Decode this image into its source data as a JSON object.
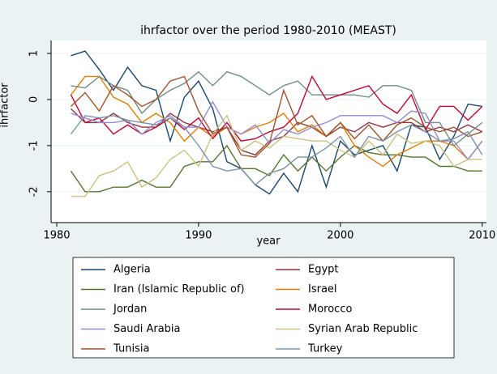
{
  "chart_data": {
    "type": "line",
    "title": "ihrfactor over the period 1980-2010 (MEAST)",
    "x_label": "year",
    "y_label": "ihrfactor",
    "x": [
      1981,
      1982,
      1983,
      1984,
      1985,
      1986,
      1987,
      1988,
      1989,
      1990,
      1991,
      1992,
      1993,
      1994,
      1995,
      1996,
      1997,
      1998,
      1999,
      2000,
      2001,
      2002,
      2003,
      2004,
      2005,
      2006,
      2007,
      2008,
      2009,
      2010
    ],
    "xlim": [
      1979.6,
      2010.3
    ],
    "xticks": [
      1980,
      1990,
      2000,
      2010
    ],
    "ylim": [
      -2.67,
      1.28
    ],
    "yticks": [
      -2,
      -1,
      0,
      1
    ],
    "grid": true,
    "legend_position": "bottom",
    "legend_columns": 2,
    "series": [
      {
        "name": "Algeria",
        "color": "#1a476f",
        "values": [
          0.95,
          1.05,
          0.65,
          0.2,
          0.7,
          0.3,
          0.2,
          -0.9,
          0.05,
          0.4,
          -0.2,
          -1.35,
          -1.5,
          -1.85,
          -2.05,
          -1.6,
          -2.0,
          -1.0,
          -1.9,
          -0.9,
          -1.2,
          -1.1,
          -1.0,
          -1.55,
          -0.55,
          -0.6,
          -1.3,
          -0.8,
          -0.1,
          -0.15
        ]
      },
      {
        "name": "Egypt",
        "color": "#90353b",
        "values": [
          -0.2,
          -0.5,
          -0.5,
          -0.3,
          -0.5,
          -0.6,
          -0.6,
          -0.3,
          -0.5,
          -0.6,
          -0.7,
          -0.6,
          -1.1,
          -1.2,
          -0.9,
          -0.8,
          -0.5,
          -0.6,
          -0.8,
          -0.6,
          -0.7,
          -0.5,
          -0.6,
          -0.5,
          -0.5,
          -0.7,
          -0.6,
          -0.7,
          -0.55,
          -0.7
        ]
      },
      {
        "name": "Iran (Islamic Republic of)",
        "color": "#55752f",
        "values": [
          -1.55,
          -2.0,
          -2.0,
          -1.9,
          -1.9,
          -1.75,
          -1.9,
          -1.9,
          -1.45,
          -1.35,
          -1.35,
          -1.0,
          -1.5,
          -1.5,
          -1.65,
          -1.2,
          -1.55,
          -1.25,
          -1.55,
          -1.25,
          -1.0,
          -1.15,
          -1.2,
          -1.2,
          -1.25,
          -1.25,
          -1.45,
          -1.45,
          -1.55,
          -1.55
        ]
      },
      {
        "name": "Israel",
        "color": "#e37e00",
        "values": [
          0.1,
          0.5,
          0.5,
          0.05,
          -0.1,
          -0.5,
          -0.3,
          -0.5,
          -0.9,
          -0.6,
          -0.8,
          -0.6,
          -0.75,
          -0.6,
          -0.5,
          -0.3,
          -0.7,
          -0.55,
          -0.8,
          -0.5,
          -1.0,
          -1.25,
          -1.45,
          -1.2,
          -1.05,
          -0.9,
          -0.9,
          -1.0,
          -1.3,
          -0.9
        ]
      },
      {
        "name": "Jordan",
        "color": "#6e8e84",
        "values": [
          0.3,
          0.25,
          0.5,
          0.3,
          0.2,
          -0.3,
          0.0,
          0.2,
          0.35,
          0.6,
          0.3,
          0.6,
          0.5,
          0.3,
          0.1,
          0.3,
          0.4,
          0.1,
          0.1,
          0.1,
          0.1,
          0.05,
          0.3,
          0.3,
          0.2,
          -0.5,
          -0.5,
          -1.0,
          -0.75,
          -0.5
        ]
      },
      {
        "name": "Morocco",
        "color": "#c10534",
        "values": [
          0.1,
          -0.5,
          -0.4,
          -0.75,
          -0.55,
          -0.75,
          -0.6,
          -0.4,
          -0.65,
          -0.4,
          -0.85,
          -0.5,
          -0.9,
          -0.85,
          -0.7,
          -0.6,
          -0.3,
          0.5,
          0.0,
          0.1,
          0.2,
          0.3,
          -0.1,
          -0.3,
          0.1,
          -0.65,
          -0.15,
          -0.15,
          -0.45,
          -0.15
        ]
      },
      {
        "name": "Saudi Arabia",
        "color": "#938dd2",
        "values": [
          -0.3,
          -0.4,
          -0.5,
          -0.5,
          -0.45,
          -0.75,
          -0.5,
          -0.35,
          -0.6,
          -0.6,
          -0.05,
          -0.6,
          -0.75,
          -0.55,
          -0.95,
          -0.65,
          -0.75,
          -0.6,
          -0.5,
          -0.35,
          -0.35,
          -0.35,
          -0.35,
          -0.5,
          -0.25,
          -0.3,
          -0.9,
          -0.9,
          -1.3,
          -0.9
        ]
      },
      {
        "name": "Syrian Arab Republic",
        "color": "#cac27e",
        "values": [
          -2.1,
          -2.1,
          -1.65,
          -1.55,
          -1.35,
          -1.9,
          -1.7,
          -1.3,
          -1.1,
          -1.45,
          -0.75,
          -0.35,
          -1.1,
          -0.9,
          -1.05,
          -0.8,
          -0.85,
          -0.9,
          -0.9,
          -1.1,
          -1.25,
          -0.9,
          -1.2,
          -0.75,
          -0.95,
          -0.9,
          -1.0,
          -1.45,
          -1.3,
          -1.3
        ]
      },
      {
        "name": "Tunisia",
        "color": "#a0522d",
        "values": [
          -0.15,
          0.15,
          -0.25,
          0.3,
          0.1,
          -0.15,
          0.0,
          0.4,
          0.5,
          -0.25,
          -0.75,
          -0.6,
          -1.2,
          -1.25,
          -0.95,
          0.2,
          -0.55,
          -0.35,
          -0.8,
          -0.5,
          -0.85,
          -0.55,
          -0.9,
          -0.55,
          -0.4,
          -0.6,
          -0.7,
          -0.6,
          -0.8,
          -0.7
        ]
      },
      {
        "name": "Turkey",
        "color": "#7b92a8",
        "values": [
          -0.75,
          -0.35,
          -0.4,
          -0.35,
          -0.45,
          -0.5,
          -0.55,
          -0.4,
          -0.6,
          -1.0,
          -1.45,
          -1.55,
          -1.5,
          -1.85,
          -1.6,
          -1.5,
          -1.25,
          -1.25,
          -1.05,
          -0.8,
          -1.25,
          -0.8,
          -0.9,
          -0.7,
          -0.55,
          -0.7,
          -0.9,
          -0.85,
          -0.7,
          -1.2
        ]
      }
    ]
  }
}
